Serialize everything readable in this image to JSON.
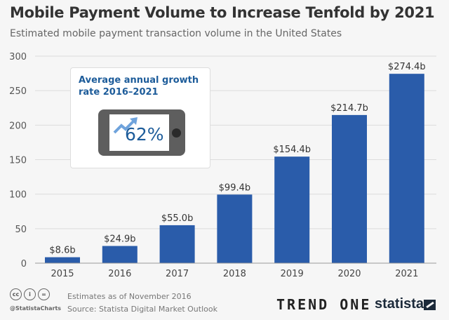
{
  "header": {
    "title": "Mobile Payment Volume to Increase Tenfold by 2021",
    "subtitle": "Estimated mobile payment transaction volume in the United States"
  },
  "chart_data": {
    "type": "bar",
    "title": "Mobile Payment Volume to Increase Tenfold by 2021",
    "subtitle": "Estimated mobile payment transaction volume in the United States",
    "categories": [
      "2015",
      "2016",
      "2017",
      "2018",
      "2019",
      "2020",
      "2021"
    ],
    "values": [
      8.6,
      24.9,
      55.0,
      99.4,
      154.4,
      214.7,
      274.4
    ],
    "data_labels": [
      "$8.6b",
      "$24.9b",
      "$55.0b",
      "$99.4b",
      "$154.4b",
      "$214.7b",
      "$274.4b"
    ],
    "yticks": [
      "0",
      "50",
      "100",
      "150",
      "200",
      "250",
      "300"
    ],
    "ylim": [
      0,
      300
    ],
    "grid": true,
    "bar_color": "#2a5caa",
    "annotation": {
      "title": "Average annual growth rate 2016–2021",
      "value": "62%"
    }
  },
  "footer": {
    "note": "Estimates as of November 2016",
    "source": "Source: Statista Digital Market Outlook",
    "handle": "@StatistaCharts",
    "cc_icons": [
      "cc",
      "by",
      "nd"
    ],
    "logo_trendone": "TREND ONE",
    "logo_statista": "statista"
  }
}
